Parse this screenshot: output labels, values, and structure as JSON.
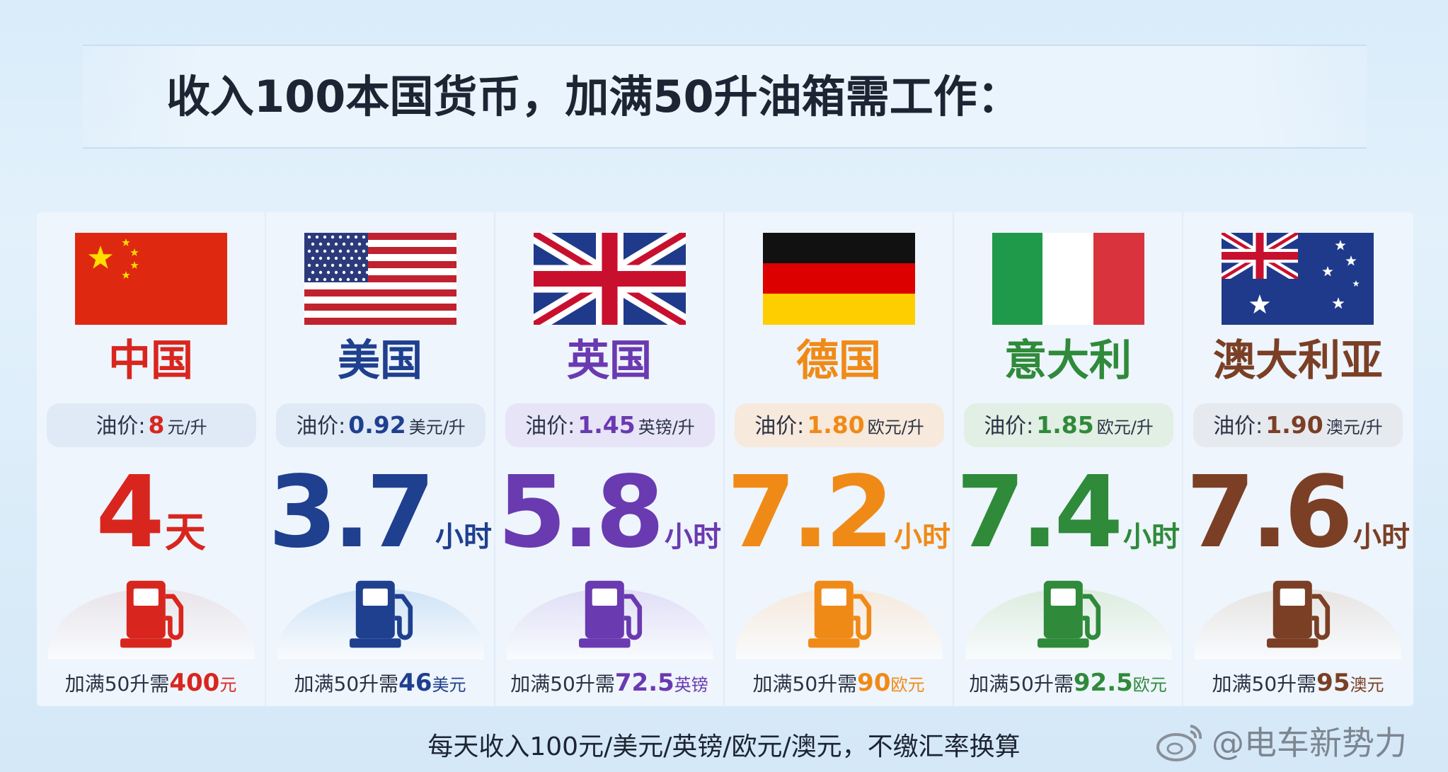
{
  "title": "收入100本国货币，加满50升油箱需工作：",
  "cards": [
    {
      "country": "中国",
      "price_label": "油价:",
      "price": "8",
      "price_unit": "元/升",
      "time": "4",
      "time_unit": "天",
      "fill_label": "加满50升需",
      "fill_amount": "400",
      "fill_unit": "元"
    },
    {
      "country": "美国",
      "price_label": "油价:",
      "price": "0.92",
      "price_unit": "美元/升",
      "time": "3.7",
      "time_unit": "小时",
      "fill_label": "加满50升需",
      "fill_amount": "46",
      "fill_unit": "美元"
    },
    {
      "country": "英国",
      "price_label": "油价:",
      "price": "1.45",
      "price_unit": "英镑/升",
      "time": "5.8",
      "time_unit": "小时",
      "fill_label": "加满50升需",
      "fill_amount": "72.5",
      "fill_unit": "英镑"
    },
    {
      "country": "德国",
      "price_label": "油价:",
      "price": "1.80",
      "price_unit": "欧元/升",
      "time": "7.2",
      "time_unit": "小时",
      "fill_label": "加满50升需",
      "fill_amount": "90",
      "fill_unit": "欧元"
    },
    {
      "country": "意大利",
      "price_label": "油价:",
      "price": "1.85",
      "price_unit": "欧元/升",
      "time": "7.4",
      "time_unit": "小时",
      "fill_label": "加满50升需",
      "fill_amount": "92.5",
      "fill_unit": "欧元"
    },
    {
      "country": "澳大利亚",
      "price_label": "油价:",
      "price": "1.90",
      "price_unit": "澳元/升",
      "time": "7.6",
      "time_unit": "小时",
      "fill_label": "加满50升需",
      "fill_amount": "95",
      "fill_unit": "澳元"
    }
  ],
  "footer": "每天收入100元/美元/英镑/欧元/澳元，不缴汇率换算",
  "watermark": "@电车新势力"
}
